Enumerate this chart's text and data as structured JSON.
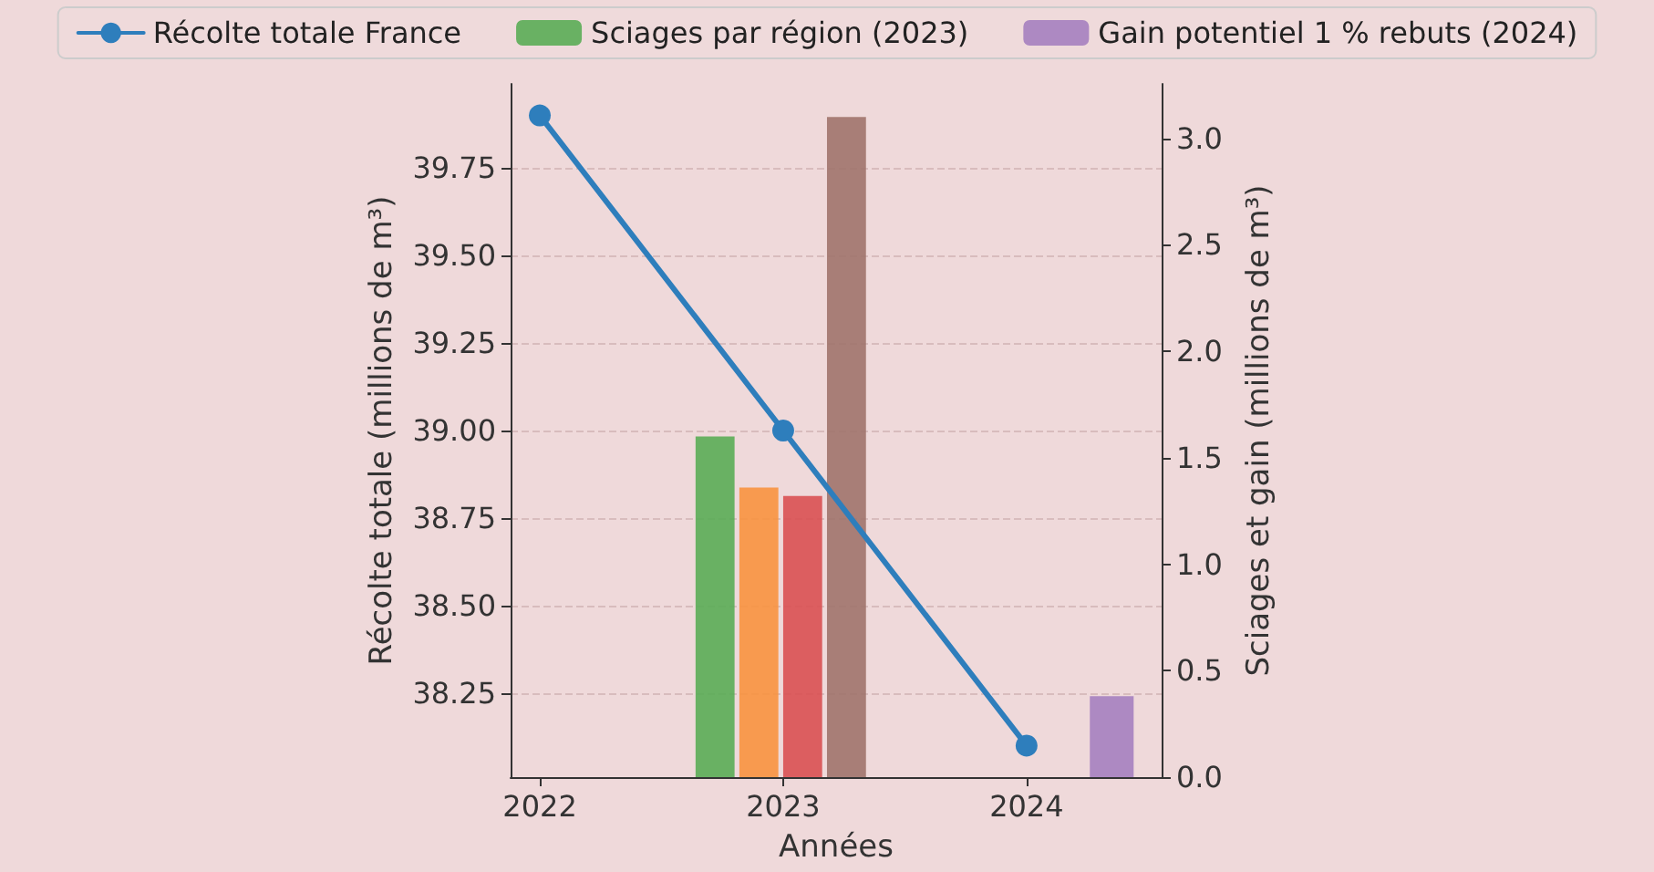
{
  "chart_data": {
    "type": "line",
    "xlabel": "Années",
    "ylabel": "Récolte totale (millions de m³)",
    "y2label": "Sciages et gain (millions de m³)",
    "series": [
      {
        "name": "Récolte totale France",
        "color": "#2e7ebc",
        "x": [
          2022,
          2023,
          2024
        ],
        "values": [
          39.9,
          39.0,
          38.1
        ]
      },
      {
        "name": "Sciages par région (2023)",
        "type": "bar",
        "axis": "y2",
        "color": "#5aac55",
        "colors": [
          "#5aac55",
          "#f8923f",
          "#d95052",
          "#a0736b"
        ],
        "x": [
          2022.73,
          2022.91,
          2023.09,
          2023.27
        ],
        "values": [
          1.6,
          1.36,
          1.32,
          3.1
        ]
      },
      {
        "name": "Gain potentiel 1 % rebuts (2024)",
        "type": "bar",
        "axis": "y2",
        "color": "#a57fbf",
        "x": [
          2024.35
        ],
        "values": [
          0.38
        ]
      }
    ],
    "xlim": [
      2021.88,
      2024.555
    ],
    "xticks": [
      2022,
      2023,
      2024
    ],
    "ylim": [
      38.01,
      39.99
    ],
    "yticks": [
      {
        "value": 38.25,
        "label": "38.25"
      },
      {
        "value": 38.5,
        "label": "38.50"
      },
      {
        "value": 38.75,
        "label": "38.75"
      },
      {
        "value": 39.0,
        "label": "39.00"
      },
      {
        "value": 39.25,
        "label": "39.25"
      },
      {
        "value": 39.5,
        "label": "39.50"
      },
      {
        "value": 39.75,
        "label": "39.75"
      }
    ],
    "y2lim": [
      0,
      3.255
    ],
    "y2ticks": [
      {
        "value": 0,
        "label": "0.0"
      },
      {
        "value": 0.5,
        "label": "0.5"
      },
      {
        "value": 1,
        "label": "1.0"
      },
      {
        "value": 1.5,
        "label": "1.5"
      },
      {
        "value": 2,
        "label": "2.0"
      },
      {
        "value": 2.5,
        "label": "2.5"
      },
      {
        "value": 3,
        "label": "3.0"
      }
    ],
    "grid": "y",
    "legend": "top",
    "marker": "circle",
    "line_style": "solid"
  }
}
